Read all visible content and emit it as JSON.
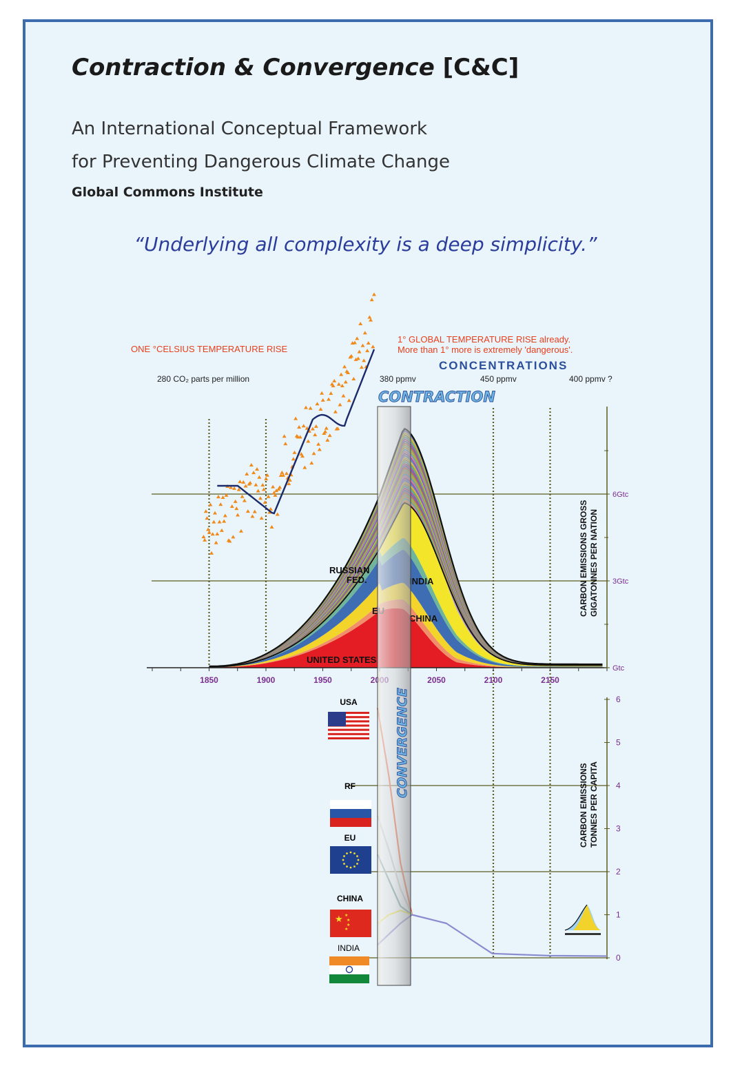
{
  "header": {
    "title_italic": "Contraction & Convergence",
    "title_bracket": "[C&C]",
    "subtitle_line1": "An International Conceptual Framework",
    "subtitle_line2": "for Preventing Dangerous Climate Change",
    "organization": "Global Commons Institute",
    "quote": "“Underlying all complexity is a deep simplicity.”"
  },
  "annotations": {
    "temp_left": "ONE °CELSIUS TEMPERATURE RISE",
    "temp_right_1": "1° GLOBAL TEMPERATURE RISE already.",
    "temp_right_2": "More than 1° more is extremely 'dangerous'.",
    "concentrations": "CONCENTRATIONS",
    "ppm_280": "280 CO₂ parts per million",
    "ppm_380": "380 ppmv",
    "ppm_450": "450 ppmv",
    "ppm_400": "400 ppmv ?",
    "contraction": "CONTRACTION",
    "convergence": "CONVERGENCE",
    "upper_axis_title_1": "CARBON EMISSIONS GROSS",
    "upper_axis_title_2": "GIGATONNES PER NATION",
    "lower_axis_title_1": "CARBON EMISSIONS",
    "lower_axis_title_2": "TONNES PER CAPITA",
    "region_russia_1": "RUSSIAN",
    "region_russia_2": "FED.",
    "region_india": "INDIA",
    "region_eu": "EU",
    "region_china": "CHINA",
    "region_us": "UNITED STATES"
  },
  "colors": {
    "frame": "#3d6cae",
    "background": "#e9f4fb",
    "red_text": "#e8401c",
    "blue_text": "#2b3c9a",
    "axis_purple": "#7a2f8f",
    "grid_olive": "#5d5a1e"
  },
  "chart_data": [
    {
      "type": "area",
      "x_ticks": [
        1850,
        1900,
        1950,
        2000,
        2050,
        2100,
        2150
      ],
      "xlim": [
        1800,
        2200
      ],
      "y_ticks": [
        "Gtc",
        "3Gtc",
        "6Gtc"
      ],
      "ylim": [
        0,
        8
      ],
      "stacked_series": [
        {
          "name": "UNITED STATES",
          "color": "#e31d23"
        },
        {
          "name": "EU",
          "color": "#f2d42a"
        },
        {
          "name": "RUSSIAN FED.",
          "color": "#3f6db3"
        },
        {
          "name": "CHINA",
          "color": "#f3e52a"
        },
        {
          "name": "INDIA",
          "color": "#b29ccd"
        }
      ]
    },
    {
      "type": "line",
      "title": "CONVERGENCE",
      "y_ticks": [
        0,
        1,
        2,
        3,
        4,
        5,
        6
      ],
      "ylim": [
        0,
        6
      ],
      "xlim": [
        2000,
        2200
      ],
      "series": [
        {
          "name": "USA",
          "color": "#e8633b",
          "x": [
            2000,
            2010,
            2020,
            2030
          ],
          "y": [
            5.8,
            4.2,
            2.2,
            1.0
          ]
        },
        {
          "name": "RF",
          "color": "#c0c4c8",
          "x": [
            2000,
            2010,
            2020,
            2030
          ],
          "y": [
            3.3,
            2.5,
            1.6,
            1.0
          ]
        },
        {
          "name": "EU",
          "color": "#6e9a9a",
          "x": [
            2000,
            2010,
            2020,
            2030
          ],
          "y": [
            2.4,
            1.8,
            1.2,
            1.0
          ]
        },
        {
          "name": "CHINA",
          "color": "#e9e24a",
          "x": [
            2000,
            2010,
            2020,
            2030
          ],
          "y": [
            0.8,
            1.0,
            1.1,
            1.0
          ]
        },
        {
          "name": "INDIA",
          "color": "#8a8ccf",
          "x": [
            2000,
            2010,
            2020,
            2030,
            2060,
            2100,
            2150,
            2200
          ],
          "y": [
            0.3,
            0.55,
            0.8,
            1.0,
            0.8,
            0.1,
            0.05,
            0.04
          ]
        }
      ],
      "country_labels": [
        "USA",
        "RF",
        "EU",
        "CHINA",
        "INDIA"
      ]
    }
  ]
}
